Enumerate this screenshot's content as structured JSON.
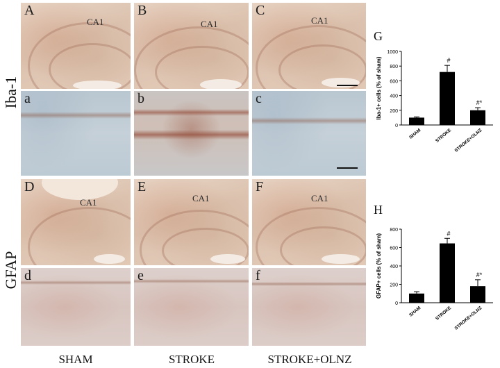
{
  "row_labels": {
    "top": "Iba-1",
    "bottom": "GFAP"
  },
  "column_labels": [
    "SHAM",
    "STROKE",
    "STROKE+OLNZ"
  ],
  "panels": {
    "A": "A",
    "B": "B",
    "C": "C",
    "a": "a",
    "b": "b",
    "c": "c",
    "D": "D",
    "E": "E",
    "F": "F",
    "d": "d",
    "e": "e",
    "f": "f"
  },
  "region_label": "CA1",
  "chart_letters": {
    "G": "G",
    "H": "H"
  },
  "chart_data": [
    {
      "type": "bar",
      "categories": [
        "SHAM",
        "STROKE",
        "STROKE+OLNZ"
      ],
      "values": [
        100,
        720,
        200
      ],
      "errors": [
        10,
        90,
        35
      ],
      "annotations": [
        "",
        "#",
        "#*"
      ],
      "ylabel": "Iba-1+ cells (% of sham)",
      "ylim": [
        0,
        1000
      ],
      "yticks": [
        "0",
        "200",
        "400",
        "600",
        "800",
        "1000"
      ],
      "bar_color": "#000000"
    },
    {
      "type": "bar",
      "categories": [
        "SHAM",
        "STROKE",
        "STROKE+OLNZ"
      ],
      "values": [
        100,
        645,
        180
      ],
      "errors": [
        20,
        55,
        70
      ],
      "annotations": [
        "",
        "#",
        "#*"
      ],
      "ylabel": "GFAP+ cells (% of sham)",
      "ylim": [
        0,
        800
      ],
      "yticks": [
        "0",
        "200",
        "400",
        "600",
        "800"
      ],
      "bar_color": "#000000"
    }
  ]
}
